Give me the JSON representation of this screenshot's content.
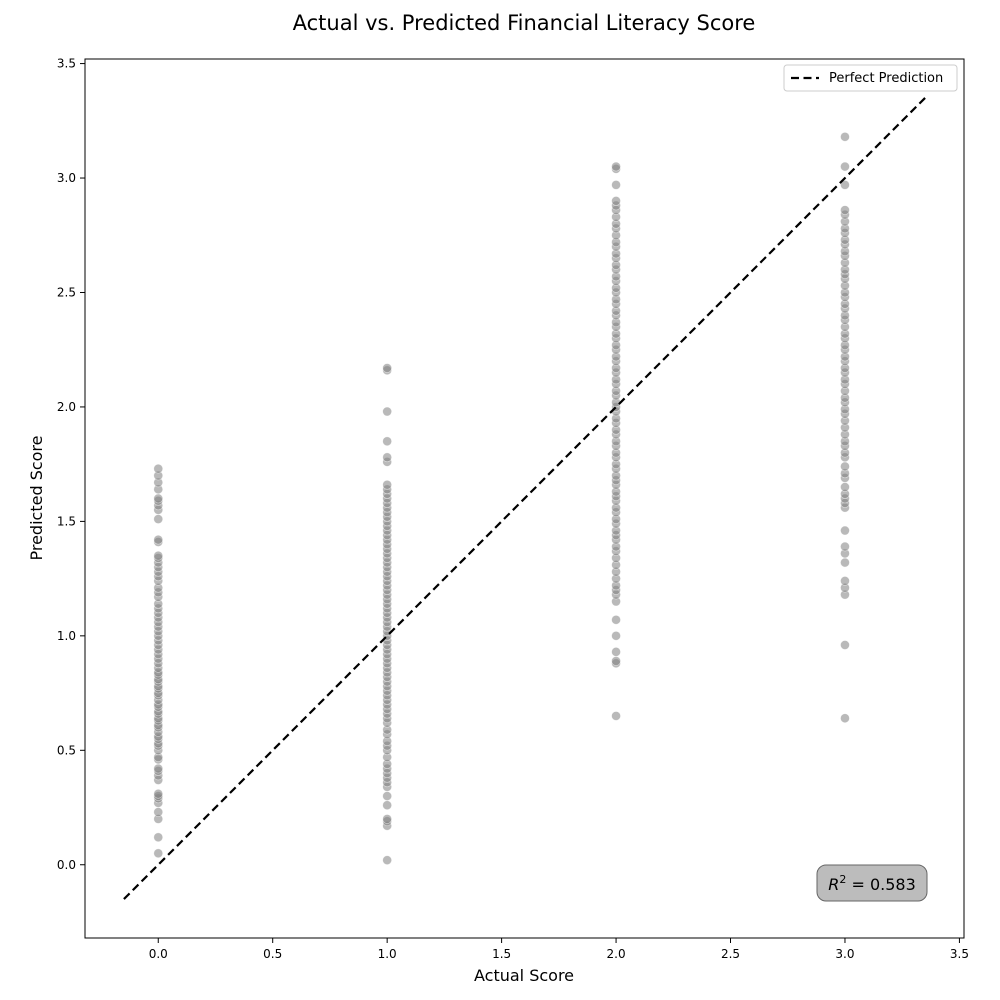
{
  "chart_data": {
    "type": "scatter",
    "title": "Actual vs. Predicted Financial Literacy Score",
    "xlabel": "Actual Score",
    "ylabel": "Predicted Score",
    "xlim": [
      -0.32,
      3.52
    ],
    "ylim": [
      -0.32,
      3.52
    ],
    "xticks": [
      "0.0",
      "0.5",
      "1.0",
      "1.5",
      "2.0",
      "2.5",
      "3.0",
      "3.5"
    ],
    "yticks": [
      "0.0",
      "0.5",
      "1.0",
      "1.5",
      "2.0",
      "2.5",
      "3.0",
      "3.5"
    ],
    "grid": false,
    "legend": {
      "position": "top-right",
      "entries": [
        "Perfect Prediction"
      ]
    },
    "reference_line": {
      "name": "Perfect Prediction",
      "style": "dashed",
      "color": "#000000",
      "x": [
        -0.15,
        3.35
      ],
      "y": [
        -0.15,
        3.35
      ]
    },
    "annotation": {
      "prefix": "R",
      "superscript": "2",
      "text": " = 0.583",
      "position": "bottom-right"
    },
    "point_color": "#808080",
    "series": [
      {
        "x": 0,
        "y": [
          0.05,
          0.12,
          0.2,
          0.23,
          0.27,
          0.29,
          0.3,
          0.31,
          0.37,
          0.39,
          0.41,
          0.42,
          0.46,
          0.47,
          0.5,
          0.52,
          0.53,
          0.55,
          0.56,
          0.58,
          0.6,
          0.61,
          0.63,
          0.64,
          0.66,
          0.67,
          0.69,
          0.7,
          0.72,
          0.74,
          0.75,
          0.77,
          0.78,
          0.8,
          0.81,
          0.83,
          0.84,
          0.86,
          0.88,
          0.9,
          0.92,
          0.94,
          0.96,
          0.98,
          1.0,
          1.02,
          1.04,
          1.06,
          1.08,
          1.1,
          1.12,
          1.14,
          1.17,
          1.19,
          1.21,
          1.24,
          1.26,
          1.28,
          1.3,
          1.32,
          1.34,
          1.35,
          1.41,
          1.42,
          1.51,
          1.55,
          1.57,
          1.59,
          1.6,
          1.64,
          1.67,
          1.7,
          1.73
        ]
      },
      {
        "x": 1,
        "y": [
          0.02,
          0.17,
          0.19,
          0.2,
          0.26,
          0.3,
          0.34,
          0.36,
          0.38,
          0.4,
          0.42,
          0.44,
          0.47,
          0.5,
          0.52,
          0.54,
          0.57,
          0.59,
          0.62,
          0.64,
          0.66,
          0.68,
          0.7,
          0.72,
          0.74,
          0.76,
          0.78,
          0.8,
          0.82,
          0.84,
          0.86,
          0.88,
          0.9,
          0.92,
          0.94,
          0.96,
          0.98,
          1.0,
          1.02,
          1.04,
          1.06,
          1.08,
          1.1,
          1.12,
          1.14,
          1.16,
          1.18,
          1.2,
          1.22,
          1.24,
          1.26,
          1.28,
          1.3,
          1.32,
          1.34,
          1.36,
          1.38,
          1.4,
          1.42,
          1.44,
          1.46,
          1.48,
          1.5,
          1.52,
          1.54,
          1.56,
          1.58,
          1.6,
          1.62,
          1.64,
          1.66,
          1.76,
          1.78,
          1.85,
          1.98,
          2.16,
          2.17
        ]
      },
      {
        "x": 2,
        "y": [
          0.65,
          0.88,
          0.89,
          0.93,
          1.0,
          1.07,
          1.15,
          1.18,
          1.2,
          1.22,
          1.25,
          1.28,
          1.31,
          1.34,
          1.37,
          1.39,
          1.42,
          1.44,
          1.46,
          1.49,
          1.51,
          1.54,
          1.56,
          1.59,
          1.61,
          1.63,
          1.66,
          1.68,
          1.7,
          1.73,
          1.75,
          1.78,
          1.8,
          1.83,
          1.85,
          1.88,
          1.9,
          1.93,
          1.95,
          1.98,
          2.0,
          2.02,
          2.05,
          2.07,
          2.1,
          2.12,
          2.15,
          2.17,
          2.2,
          2.22,
          2.25,
          2.27,
          2.3,
          2.32,
          2.35,
          2.37,
          2.4,
          2.42,
          2.45,
          2.47,
          2.5,
          2.52,
          2.55,
          2.57,
          2.6,
          2.62,
          2.65,
          2.67,
          2.7,
          2.72,
          2.75,
          2.78,
          2.8,
          2.83,
          2.86,
          2.88,
          2.9,
          2.97,
          3.04,
          3.05
        ]
      },
      {
        "x": 3,
        "y": [
          0.64,
          0.96,
          1.18,
          1.21,
          1.24,
          1.32,
          1.36,
          1.39,
          1.46,
          1.56,
          1.58,
          1.6,
          1.62,
          1.65,
          1.69,
          1.71,
          1.74,
          1.78,
          1.8,
          1.83,
          1.85,
          1.88,
          1.91,
          1.94,
          1.97,
          1.99,
          2.02,
          2.04,
          2.07,
          2.1,
          2.12,
          2.15,
          2.17,
          2.2,
          2.22,
          2.25,
          2.27,
          2.3,
          2.32,
          2.35,
          2.38,
          2.4,
          2.43,
          2.45,
          2.48,
          2.5,
          2.53,
          2.56,
          2.58,
          2.6,
          2.63,
          2.66,
          2.68,
          2.71,
          2.73,
          2.76,
          2.78,
          2.81,
          2.84,
          2.86,
          2.97,
          3.05,
          3.18
        ]
      }
    ]
  }
}
